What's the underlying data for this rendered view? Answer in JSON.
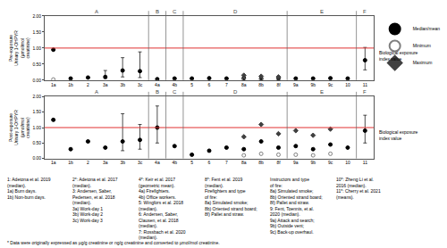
{
  "chart_data": [
    {
      "type": "scatter",
      "y_label": "Pre-exposure Urinary 1-OHPYR (µmol/mol creatinine)",
      "categories": [
        "1a",
        "1b",
        "2",
        "3a",
        "3b",
        "3c",
        "4a",
        "4b",
        "5",
        "6",
        "7",
        "8a",
        "8b",
        "8f",
        "9a",
        "9b",
        "9c",
        "10",
        "11"
      ],
      "ylim": [
        0,
        2
      ],
      "yticks": [
        {
          "value": 0,
          "label": "0.00"
        },
        {
          "value": 0.5,
          "label": "0.50"
        },
        {
          "value": 1,
          "label": "1.00"
        },
        {
          "value": 1.5,
          "label": "1.50"
        },
        {
          "value": 2,
          "label": "2.00"
        }
      ],
      "grid": false,
      "legend": "right",
      "reference": {
        "value": 1,
        "label": "Biological exposure index value",
        "color": "#e03030"
      },
      "sections": [
        {
          "label": "A",
          "from": "1a",
          "to": "3c"
        },
        {
          "label": "B",
          "from": "4a",
          "to": "4a"
        },
        {
          "label": "C",
          "from": "4b",
          "to": "4b"
        },
        {
          "label": "D",
          "from": "5",
          "to": "8f"
        },
        {
          "label": "E",
          "from": "9a",
          "to": "10"
        },
        {
          "label": "F",
          "from": "11",
          "to": "11"
        }
      ],
      "series": [
        {
          "name": "Median/mean",
          "color": "#000000",
          "marker": "circle",
          "values": [
            0.95,
            0.05,
            0.08,
            0.1,
            0.3,
            0.28,
            0.03,
            0.05,
            0.05,
            0.06,
            0.05,
            0.06,
            0.05,
            0.05,
            0.05,
            0.05,
            0.06,
            0.05,
            0.62
          ],
          "error_minus": [
            null,
            null,
            null,
            0.05,
            0.2,
            0.2,
            null,
            null,
            null,
            null,
            null,
            null,
            null,
            null,
            null,
            null,
            null,
            null,
            0.3
          ],
          "error_plus": [
            null,
            null,
            null,
            0.2,
            0.4,
            0.6,
            null,
            null,
            null,
            null,
            null,
            null,
            null,
            null,
            null,
            null,
            null,
            null,
            0.4
          ]
        },
        {
          "name": "Minimum",
          "color": "#7f7f7f",
          "marker": "circle-open",
          "values": [
            0.02,
            null,
            null,
            null,
            null,
            null,
            null,
            null,
            null,
            null,
            null,
            0.01,
            0.01,
            0.02,
            null,
            null,
            null,
            null,
            null
          ]
        },
        {
          "name": "Maximum",
          "color": "#404040",
          "marker": "diamond",
          "values": [
            null,
            null,
            null,
            null,
            null,
            null,
            null,
            null,
            null,
            null,
            null,
            0.15,
            0.12,
            0.1,
            null,
            null,
            null,
            null,
            null
          ]
        }
      ]
    },
    {
      "type": "scatter",
      "y_label": "Post-exposure Urinary 1-OHPYR (µmol/mol creatinine)",
      "categories": [
        "1a",
        "1b",
        "2",
        "3a",
        "3b",
        "3c",
        "4a",
        "4b",
        "5",
        "6",
        "7",
        "8a",
        "8b",
        "8f",
        "9a",
        "9b",
        "9c",
        "10",
        "11"
      ],
      "ylim": [
        0,
        2
      ],
      "yticks": [
        {
          "value": 0,
          "label": "0.00"
        },
        {
          "value": 0.5,
          "label": "0.50"
        },
        {
          "value": 1,
          "label": "1.00"
        },
        {
          "value": 1.5,
          "label": "1.50"
        },
        {
          "value": 2,
          "label": "2.00"
        }
      ],
      "grid": false,
      "reference": {
        "value": 1,
        "label": "Biological exposure index value",
        "color": "#e03030"
      },
      "sections": [
        {
          "label": "A",
          "from": "1a",
          "to": "3c"
        },
        {
          "label": "B",
          "from": "4a",
          "to": "4a"
        },
        {
          "label": "C",
          "from": "4b",
          "to": "4b"
        },
        {
          "label": "D",
          "from": "5",
          "to": "8f"
        },
        {
          "label": "E",
          "from": "9a",
          "to": "10"
        },
        {
          "label": "F",
          "from": "11",
          "to": "11"
        }
      ],
      "series": [
        {
          "name": "Median/mean",
          "color": "#000000",
          "marker": "circle",
          "values": [
            1.25,
            0.3,
            0.55,
            0.35,
            0.55,
            0.6,
            1.0,
            0.4,
            0.12,
            0.25,
            0.35,
            0.3,
            0.55,
            0.35,
            0.4,
            0.3,
            0.45,
            0.35,
            0.9
          ],
          "error_minus": [
            null,
            null,
            null,
            null,
            0.3,
            0.3,
            0.5,
            null,
            null,
            null,
            null,
            null,
            null,
            null,
            null,
            null,
            null,
            null,
            0.4
          ],
          "error_plus": [
            null,
            null,
            null,
            null,
            0.9,
            0.5,
            0.7,
            null,
            null,
            null,
            null,
            null,
            null,
            null,
            null,
            null,
            null,
            null,
            0.5
          ]
        },
        {
          "name": "Minimum",
          "color": "#7f7f7f",
          "marker": "circle-open",
          "values": [
            null,
            null,
            null,
            null,
            null,
            null,
            null,
            null,
            null,
            null,
            null,
            0.1,
            0.15,
            0.12,
            0.12,
            0.1,
            0.15,
            null,
            null
          ]
        },
        {
          "name": "Maximum",
          "color": "#404040",
          "marker": "diamond",
          "values": [
            null,
            null,
            null,
            null,
            null,
            null,
            null,
            null,
            null,
            null,
            null,
            0.7,
            1.1,
            0.8,
            0.9,
            0.75,
            0.95,
            null,
            null
          ]
        }
      ],
      "annotations": [
        [
          "1: Adetona et al. 2019",
          "(median).",
          "1a) Burn days.",
          "1b) Non-burn days."
        ],
        [
          "2*: Adetona et al. 2017",
          "(median).",
          "3: Andersen, Saber,",
          "Pedersen, et al. 2018",
          "(median).",
          "3a) Work-day 1",
          "3b) Work-day 2",
          "3c) Work-day 3"
        ],
        [
          "4*: Keir et al. 2017",
          "(geometric mean).",
          "4a) Firefighters.",
          "4b) Office workers.",
          "5: Wingfors et al. 2018",
          "(median).",
          "6: Andersen, Saber,",
          "Clausen, et al. 2018",
          "(median).",
          "7: Rossbach et al. 2020",
          "(median)."
        ],
        [
          "8*: Fent et al. 2019",
          "(median).",
          "Firefighters and type",
          "of fire:",
          "8a) Simulated smoke;",
          "8b) Oriented strand board;",
          "8f) Pallet and straw."
        ],
        [
          "Instructors and type",
          "of fire:",
          "8a) Simulated smoke;",
          "8b) Oriented strand board;",
          "8f) Pallet and straw.",
          "9: Fent, Toennis, et al.",
          "2020 (median).",
          "9a) Attack and search;",
          "9b) Outside vent;",
          "9c) Back-up overhaul."
        ],
        [
          "10*: Zheng Li et al.",
          "2016 (median).",
          "11*: Cherry et al. 2021",
          "(means)."
        ]
      ],
      "footnote": "* Data were originally expressed as µg/g creatinine or ng/g creatinine and converted to µmol/mol creatinine."
    }
  ]
}
